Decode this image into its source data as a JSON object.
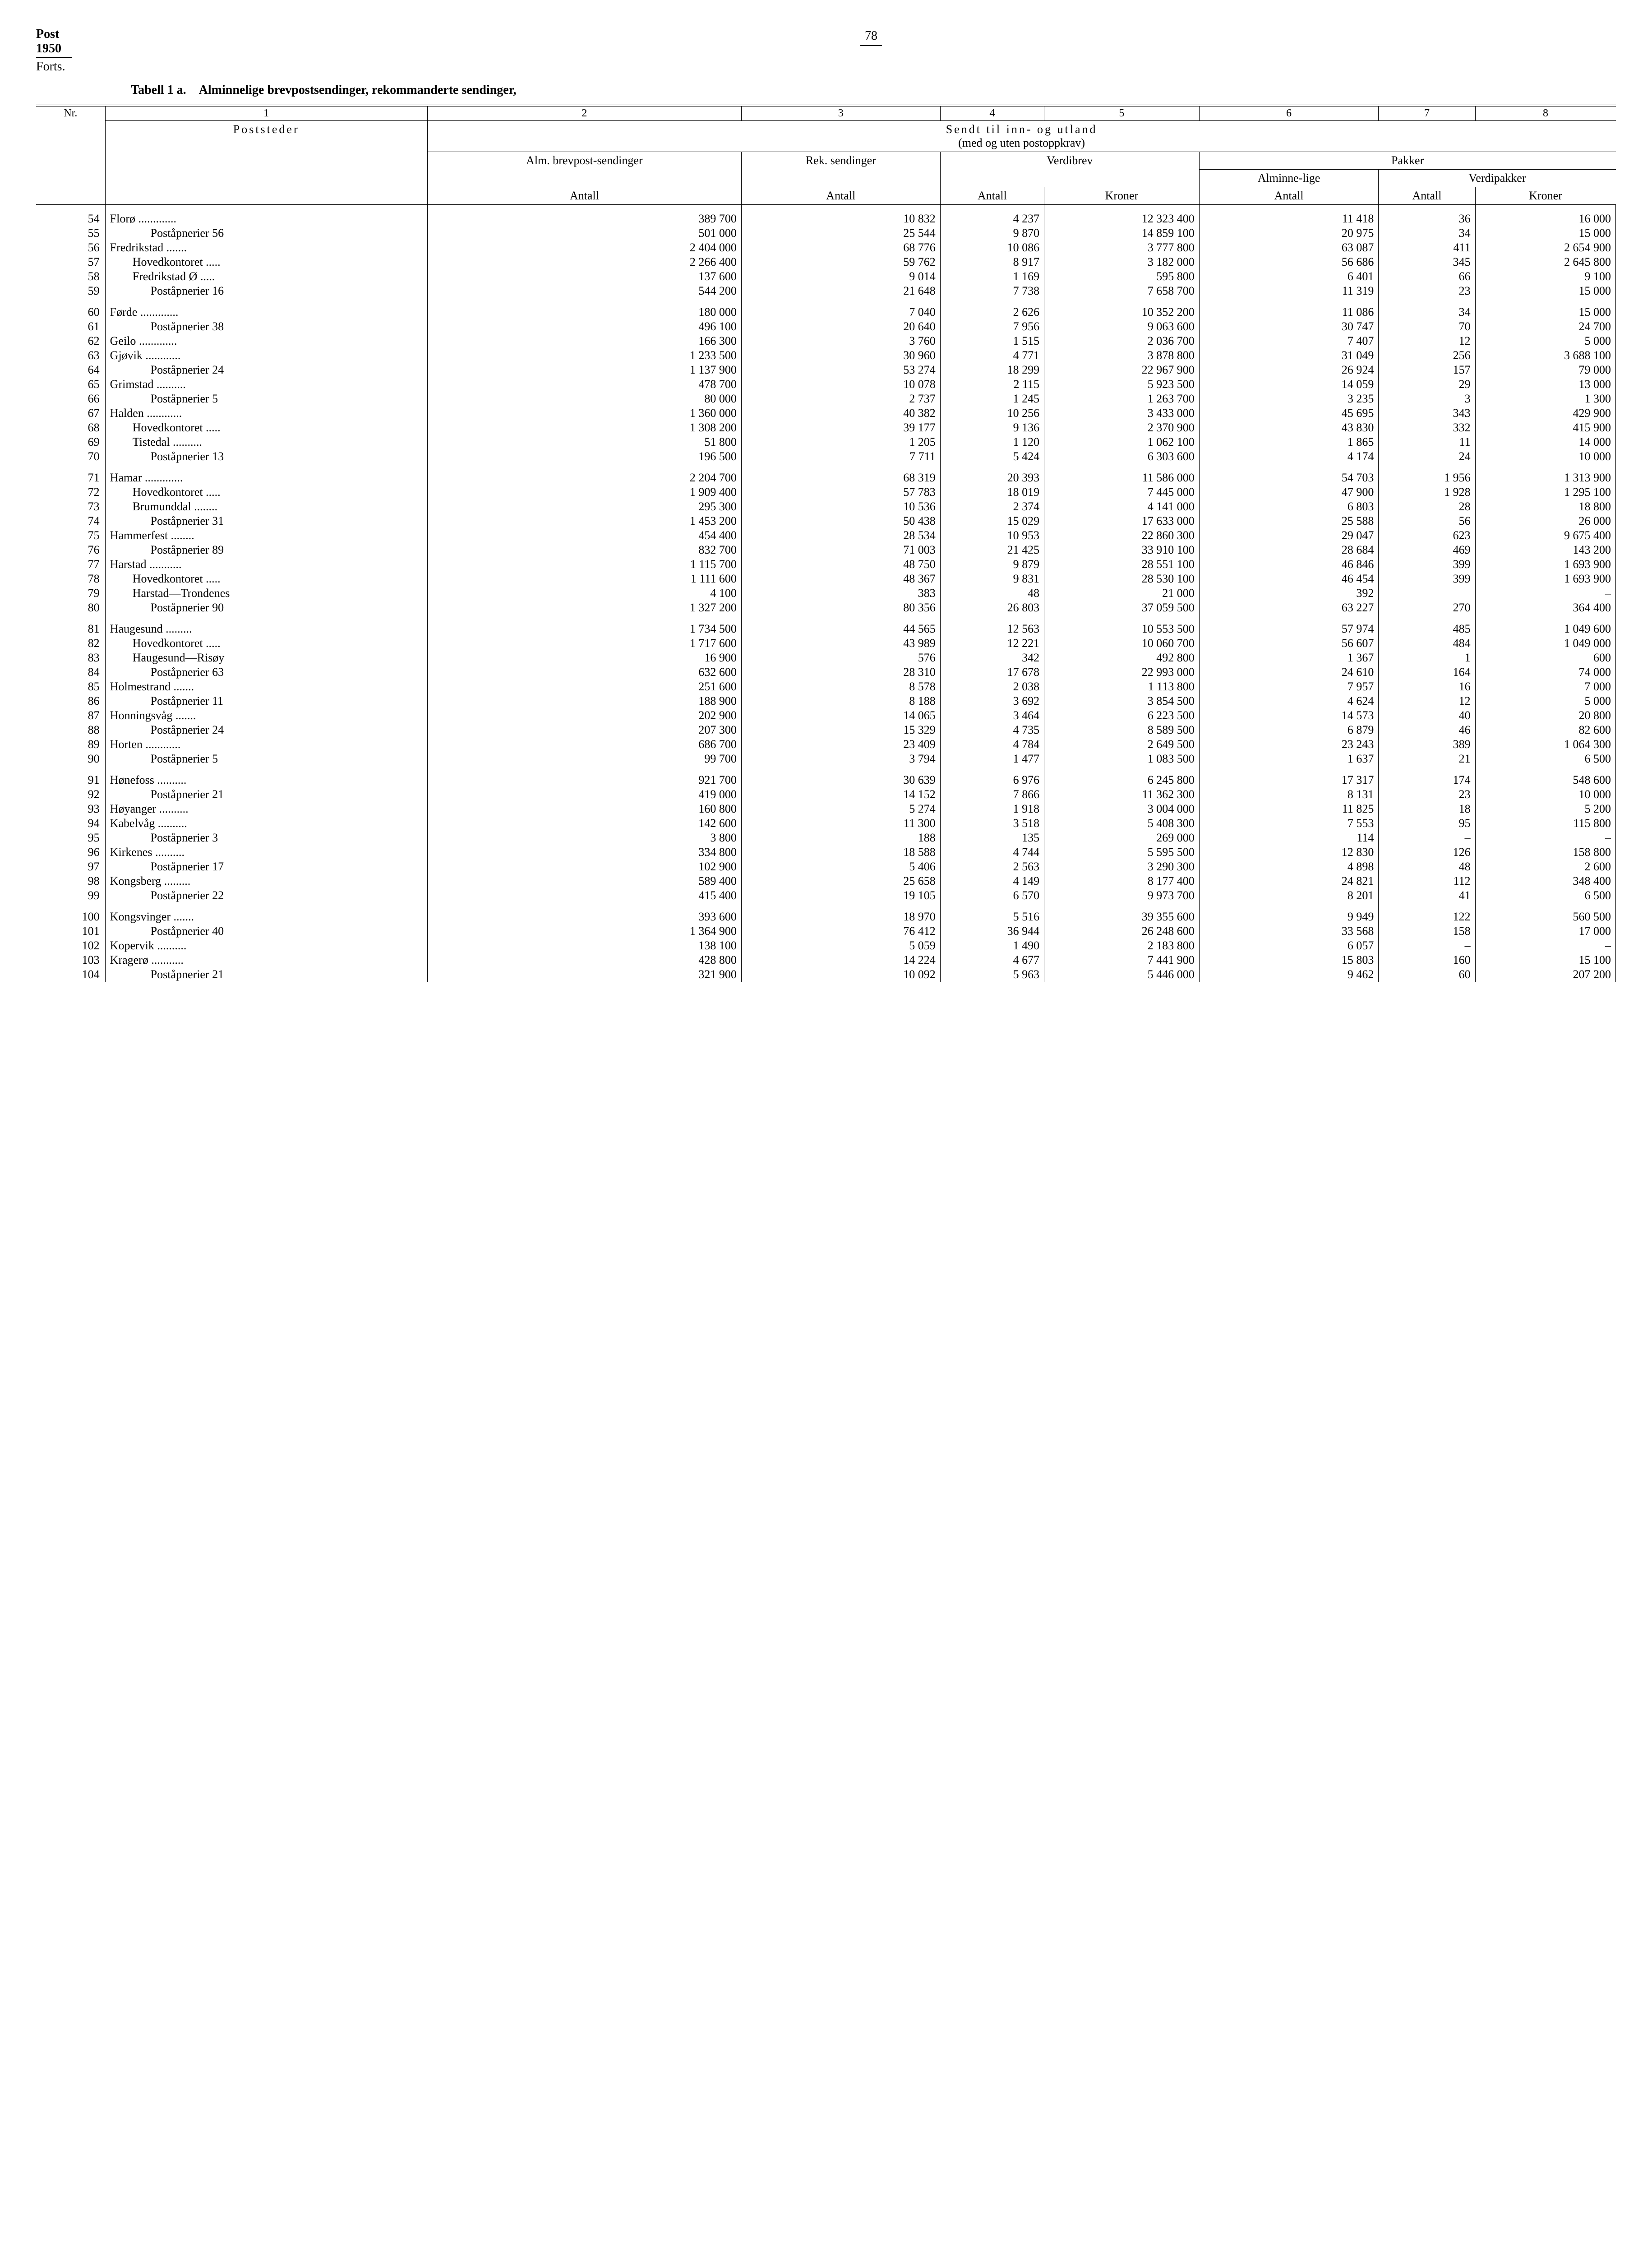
{
  "header": {
    "post": "Post",
    "year": "1950",
    "forts": "Forts.",
    "pageNumber": "78"
  },
  "tableTitle": {
    "label": "Tabell 1 a.",
    "text": "Alminnelige brevpostsendinger, rekommanderte sendinger,"
  },
  "columnNumbers": [
    "1",
    "2",
    "3",
    "4",
    "5",
    "6",
    "7",
    "8"
  ],
  "headers": {
    "nr": "Nr.",
    "poststeder": "Poststeder",
    "sendtTil": "Sendt til inn- og utland",
    "sendtSub": "(med og uten postoppkrav)",
    "alm": "Alm. brevpost-sendinger",
    "rek": "Rek. sendinger",
    "verdibrev": "Verdibrev",
    "pakker": "Pakker",
    "alminnelige": "Alminne-lige",
    "verdipakker": "Verdipakker",
    "antall": "Antall",
    "kroner": "Kroner"
  },
  "rows": [
    {
      "nr": "54",
      "place": "Florø",
      "dots": true,
      "indent": 0,
      "c": [
        "389 700",
        "10 832",
        "4 237",
        "12 323 400",
        "11 418",
        "36",
        "16 000"
      ],
      "g": true
    },
    {
      "nr": "55",
      "place": "Poståpnerier  56",
      "indent": 2,
      "c": [
        "501 000",
        "25 544",
        "9 870",
        "14 859 100",
        "20 975",
        "34",
        "15 000"
      ]
    },
    {
      "nr": "56",
      "place": "Fredrikstad",
      "dots": true,
      "indent": 0,
      "c": [
        "2 404 000",
        "68 776",
        "10 086",
        "3 777 800",
        "63 087",
        "411",
        "2 654 900"
      ]
    },
    {
      "nr": "57",
      "place": "Hovedkontoret",
      "dots": true,
      "indent": 1,
      "c": [
        "2 266 400",
        "59 762",
        "8 917",
        "3 182 000",
        "56 686",
        "345",
        "2 645 800"
      ]
    },
    {
      "nr": "58",
      "place": "Fredrikstad Ø",
      "dots": true,
      "indent": 1,
      "c": [
        "137 600",
        "9 014",
        "1 169",
        "595 800",
        "6 401",
        "66",
        "9 100"
      ]
    },
    {
      "nr": "59",
      "place": "Poståpnerier  16",
      "indent": 2,
      "c": [
        "544 200",
        "21 648",
        "7 738",
        "7 658 700",
        "11 319",
        "23",
        "15 000"
      ]
    },
    {
      "nr": "60",
      "place": "Førde",
      "dots": true,
      "indent": 0,
      "c": [
        "180 000",
        "7 040",
        "2 626",
        "10 352 200",
        "11 086",
        "34",
        "15 000"
      ],
      "g": true
    },
    {
      "nr": "61",
      "place": "Poståpnerier  38",
      "indent": 2,
      "c": [
        "496 100",
        "20 640",
        "7 956",
        "9 063 600",
        "30 747",
        "70",
        "24 700"
      ]
    },
    {
      "nr": "62",
      "place": "Geilo",
      "dots": true,
      "indent": 0,
      "c": [
        "166 300",
        "3 760",
        "1 515",
        "2 036 700",
        "7 407",
        "12",
        "5 000"
      ]
    },
    {
      "nr": "63",
      "place": "Gjøvik",
      "dots": true,
      "indent": 0,
      "c": [
        "1 233 500",
        "30 960",
        "4 771",
        "3 878 800",
        "31 049",
        "256",
        "3 688 100"
      ]
    },
    {
      "nr": "64",
      "place": "Poståpnerier  24",
      "indent": 2,
      "c": [
        "1 137 900",
        "53 274",
        "18 299",
        "22 967 900",
        "26 924",
        "157",
        "79 000"
      ]
    },
    {
      "nr": "65",
      "place": "Grimstad",
      "dots": true,
      "indent": 0,
      "c": [
        "478 700",
        "10 078",
        "2 115",
        "5 923 500",
        "14 059",
        "29",
        "13 000"
      ]
    },
    {
      "nr": "66",
      "place": "Poståpnerier   5",
      "indent": 2,
      "c": [
        "80 000",
        "2 737",
        "1 245",
        "1 263 700",
        "3 235",
        "3",
        "1 300"
      ]
    },
    {
      "nr": "67",
      "place": "Halden",
      "dots": true,
      "indent": 0,
      "c": [
        "1 360 000",
        "40 382",
        "10 256",
        "3 433 000",
        "45 695",
        "343",
        "429 900"
      ]
    },
    {
      "nr": "68",
      "place": "Hovedkontoret",
      "dots": true,
      "indent": 1,
      "c": [
        "1 308 200",
        "39 177",
        "9 136",
        "2 370 900",
        "43 830",
        "332",
        "415 900"
      ]
    },
    {
      "nr": "69",
      "place": "Tistedal",
      "dots": true,
      "indent": 1,
      "c": [
        "51 800",
        "1 205",
        "1 120",
        "1 062 100",
        "1 865",
        "11",
        "14 000"
      ]
    },
    {
      "nr": "70",
      "place": "Poståpnerier  13",
      "indent": 2,
      "c": [
        "196 500",
        "7 711",
        "5 424",
        "6 303 600",
        "4 174",
        "24",
        "10 000"
      ]
    },
    {
      "nr": "71",
      "place": "Hamar",
      "dots": true,
      "indent": 0,
      "c": [
        "2 204 700",
        "68 319",
        "20 393",
        "11 586 000",
        "54 703",
        "1 956",
        "1 313 900"
      ],
      "g": true
    },
    {
      "nr": "72",
      "place": "Hovedkontoret",
      "dots": true,
      "indent": 1,
      "c": [
        "1 909 400",
        "57 783",
        "18 019",
        "7 445 000",
        "47 900",
        "1 928",
        "1 295 100"
      ]
    },
    {
      "nr": "73",
      "place": "Brumunddal",
      "dots": true,
      "indent": 1,
      "c": [
        "295 300",
        "10 536",
        "2 374",
        "4 141 000",
        "6 803",
        "28",
        "18 800"
      ]
    },
    {
      "nr": "74",
      "place": "Poståpnerier  31",
      "indent": 2,
      "c": [
        "1 453 200",
        "50 438",
        "15 029",
        "17 633 000",
        "25 588",
        "56",
        "26 000"
      ]
    },
    {
      "nr": "75",
      "place": "Hammerfest",
      "dots": true,
      "indent": 0,
      "c": [
        "454 400",
        "28 534",
        "10 953",
        "22 860 300",
        "29 047",
        "623",
        "9 675 400"
      ]
    },
    {
      "nr": "76",
      "place": "Poståpnerier  89",
      "indent": 2,
      "c": [
        "832 700",
        "71 003",
        "21 425",
        "33 910 100",
        "28 684",
        "469",
        "143 200"
      ]
    },
    {
      "nr": "77",
      "place": "Harstad",
      "dots": true,
      "indent": 0,
      "c": [
        "1 115 700",
        "48 750",
        "9 879",
        "28 551 100",
        "46 846",
        "399",
        "1 693 900"
      ]
    },
    {
      "nr": "78",
      "place": "Hovedkontoret",
      "dots": true,
      "indent": 1,
      "c": [
        "1 111 600",
        "48 367",
        "9 831",
        "28 530 100",
        "46 454",
        "399",
        "1 693 900"
      ]
    },
    {
      "nr": "79",
      "place": "Harstad—Trondenes",
      "indent": 1,
      "c": [
        "4 100",
        "383",
        "48",
        "21 000",
        "392",
        "",
        "–"
      ]
    },
    {
      "nr": "80",
      "place": "Poståpnerier  90",
      "indent": 2,
      "c": [
        "1 327 200",
        "80 356",
        "26 803",
        "37 059 500",
        "63 227",
        "270",
        "364 400"
      ]
    },
    {
      "nr": "81",
      "place": "Haugesund",
      "dots": true,
      "indent": 0,
      "c": [
        "1 734 500",
        "44 565",
        "12 563",
        "10 553 500",
        "57 974",
        "485",
        "1 049 600"
      ],
      "g": true
    },
    {
      "nr": "82",
      "place": "Hovedkontoret",
      "dots": true,
      "indent": 1,
      "c": [
        "1 717 600",
        "43 989",
        "12 221",
        "10 060 700",
        "56 607",
        "484",
        "1 049 000"
      ]
    },
    {
      "nr": "83",
      "place": "Haugesund—Risøy",
      "indent": 1,
      "c": [
        "16 900",
        "576",
        "342",
        "492 800",
        "1 367",
        "1",
        "600"
      ]
    },
    {
      "nr": "84",
      "place": "Poståpnerier  63",
      "indent": 2,
      "c": [
        "632 600",
        "28 310",
        "17 678",
        "22 993 000",
        "24 610",
        "164",
        "74 000"
      ]
    },
    {
      "nr": "85",
      "place": "Holmestrand",
      "dots": true,
      "indent": 0,
      "c": [
        "251 600",
        "8 578",
        "2 038",
        "1 113 800",
        "7 957",
        "16",
        "7 000"
      ]
    },
    {
      "nr": "86",
      "place": "Poståpnerier  11",
      "indent": 2,
      "c": [
        "188 900",
        "8 188",
        "3 692",
        "3 854 500",
        "4 624",
        "12",
        "5 000"
      ]
    },
    {
      "nr": "87",
      "place": "Honningsvåg",
      "dots": true,
      "indent": 0,
      "c": [
        "202 900",
        "14 065",
        "3 464",
        "6 223 500",
        "14 573",
        "40",
        "20 800"
      ]
    },
    {
      "nr": "88",
      "place": "Poståpnerier  24",
      "indent": 2,
      "c": [
        "207 300",
        "15 329",
        "4 735",
        "8 589 500",
        "6 879",
        "46",
        "82 600"
      ]
    },
    {
      "nr": "89",
      "place": "Horten",
      "dots": true,
      "indent": 0,
      "c": [
        "686 700",
        "23 409",
        "4 784",
        "2 649 500",
        "23 243",
        "389",
        "1 064 300"
      ]
    },
    {
      "nr": "90",
      "place": "Poståpnerier   5",
      "indent": 2,
      "c": [
        "99 700",
        "3 794",
        "1 477",
        "1 083 500",
        "1 637",
        "21",
        "6 500"
      ]
    },
    {
      "nr": "91",
      "place": "Hønefoss",
      "dots": true,
      "indent": 0,
      "c": [
        "921 700",
        "30 639",
        "6 976",
        "6 245 800",
        "17 317",
        "174",
        "548 600"
      ],
      "g": true
    },
    {
      "nr": "92",
      "place": "Poståpnerier  21",
      "indent": 2,
      "c": [
        "419 000",
        "14 152",
        "7 866",
        "11 362 300",
        "8 131",
        "23",
        "10 000"
      ]
    },
    {
      "nr": "93",
      "place": "Høyanger",
      "dots": true,
      "indent": 0,
      "c": [
        "160 800",
        "5 274",
        "1 918",
        "3 004 000",
        "11 825",
        "18",
        "5 200"
      ]
    },
    {
      "nr": "94",
      "place": "Kabelvåg",
      "dots": true,
      "indent": 0,
      "c": [
        "142 600",
        "11 300",
        "3 518",
        "5 408 300",
        "7 553",
        "95",
        "115 800"
      ]
    },
    {
      "nr": "95",
      "place": "Poståpnerier   3",
      "indent": 2,
      "c": [
        "3 800",
        "188",
        "135",
        "269 000",
        "114",
        "–",
        "–"
      ]
    },
    {
      "nr": "96",
      "place": "Kirkenes",
      "dots": true,
      "indent": 0,
      "c": [
        "334 800",
        "18 588",
        "4 744",
        "5 595 500",
        "12 830",
        "126",
        "158 800"
      ]
    },
    {
      "nr": "97",
      "place": "Poståpnerier  17",
      "indent": 2,
      "c": [
        "102 900",
        "5 406",
        "2 563",
        "3 290 300",
        "4 898",
        "48",
        "2 600"
      ]
    },
    {
      "nr": "98",
      "place": "Kongsberg",
      "dots": true,
      "indent": 0,
      "c": [
        "589 400",
        "25 658",
        "4 149",
        "8 177 400",
        "24 821",
        "112",
        "348 400"
      ]
    },
    {
      "nr": "99",
      "place": "Poståpnerier  22",
      "indent": 2,
      "c": [
        "415 400",
        "19 105",
        "6 570",
        "9 973 700",
        "8 201",
        "41",
        "6 500"
      ]
    },
    {
      "nr": "100",
      "place": "Kongsvinger",
      "dots": true,
      "indent": 0,
      "c": [
        "393 600",
        "18 970",
        "5 516",
        "39 355 600",
        "9 949",
        "122",
        "560 500"
      ],
      "g": true
    },
    {
      "nr": "101",
      "place": "Poståpnerier  40",
      "indent": 2,
      "c": [
        "1 364 900",
        "76 412",
        "36 944",
        "26 248 600",
        "33 568",
        "158",
        "17 000"
      ]
    },
    {
      "nr": "102",
      "place": "Kopervik",
      "dots": true,
      "indent": 0,
      "c": [
        "138 100",
        "5 059",
        "1 490",
        "2 183 800",
        "6 057",
        "–",
        "–"
      ]
    },
    {
      "nr": "103",
      "place": "Kragerø",
      "dots": true,
      "indent": 0,
      "c": [
        "428 800",
        "14 224",
        "4 677",
        "7 441 900",
        "15 803",
        "160",
        "15 100"
      ]
    },
    {
      "nr": "104",
      "place": "Poståpnerier  21",
      "indent": 2,
      "c": [
        "321 900",
        "10 092",
        "5 963",
        "5 446 000",
        "9 462",
        "60",
        "207 200"
      ]
    }
  ]
}
